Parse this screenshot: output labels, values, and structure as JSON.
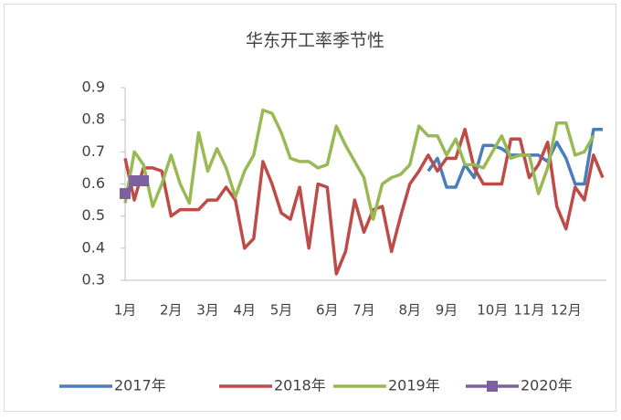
{
  "chart_data": {
    "type": "line",
    "title": "华东开工率季节性",
    "categories": [
      "1月",
      null,
      null,
      null,
      null,
      "2月",
      null,
      null,
      null,
      "3月",
      null,
      null,
      null,
      "4月",
      null,
      null,
      null,
      "5月",
      null,
      null,
      null,
      null,
      "6月",
      null,
      null,
      null,
      "7月",
      null,
      null,
      null,
      null,
      "8月",
      null,
      null,
      null,
      "9月",
      null,
      null,
      null,
      null,
      "10月",
      null,
      null,
      null,
      "11月",
      null,
      null,
      null,
      "12月",
      null,
      null,
      null,
      null
    ],
    "series": [
      {
        "name": "2017年",
        "color": "#4a7ebb",
        "values": [
          null,
          null,
          null,
          null,
          null,
          null,
          null,
          null,
          null,
          null,
          null,
          null,
          null,
          null,
          null,
          null,
          null,
          null,
          null,
          null,
          null,
          null,
          null,
          null,
          null,
          null,
          null,
          null,
          null,
          null,
          null,
          null,
          null,
          0.64,
          0.68,
          0.59,
          0.59,
          0.66,
          0.62,
          0.72,
          0.72,
          0.71,
          0.69,
          0.69,
          0.69,
          0.69,
          0.67,
          0.73,
          0.68,
          0.6,
          0.6,
          0.77,
          0.77
        ]
      },
      {
        "name": "2018年",
        "color": "#be4b48",
        "values": [
          0.68,
          0.55,
          0.65,
          0.65,
          0.64,
          0.5,
          0.52,
          0.52,
          0.52,
          0.55,
          0.55,
          0.59,
          0.55,
          0.4,
          0.43,
          0.67,
          0.6,
          0.51,
          0.49,
          0.59,
          0.4,
          0.6,
          0.59,
          0.32,
          0.39,
          0.55,
          0.45,
          0.52,
          0.53,
          0.39,
          0.5,
          0.6,
          0.64,
          0.69,
          0.64,
          0.68,
          0.68,
          0.77,
          0.65,
          0.6,
          0.6,
          0.6,
          0.74,
          0.74,
          0.62,
          0.66,
          0.73,
          0.53,
          0.46,
          0.59,
          0.55,
          0.69,
          0.62
        ]
      },
      {
        "name": "2019年",
        "color": "#98b954",
        "values": [
          0.54,
          0.7,
          0.66,
          0.53,
          0.6,
          0.69,
          0.6,
          0.54,
          0.76,
          0.64,
          0.71,
          0.65,
          0.56,
          0.64,
          0.69,
          0.83,
          0.82,
          0.76,
          0.68,
          0.67,
          0.67,
          0.65,
          0.66,
          0.78,
          0.72,
          0.67,
          0.62,
          0.49,
          0.6,
          0.62,
          0.63,
          0.66,
          0.78,
          0.75,
          0.75,
          0.69,
          0.74,
          0.66,
          0.66,
          0.65,
          0.7,
          0.75,
          0.68,
          0.69,
          0.69,
          0.57,
          0.65,
          0.79,
          0.79,
          0.69,
          0.7,
          0.75,
          null
        ]
      },
      {
        "name": "2020年",
        "color": "#7d60a0",
        "marker": "square",
        "values": [
          0.57,
          0.61,
          0.61,
          null,
          null,
          null,
          null,
          null,
          null,
          null,
          null,
          null,
          null,
          null,
          null,
          null,
          null,
          null,
          null,
          null,
          null,
          null,
          null,
          null,
          null,
          null,
          null,
          null,
          null,
          null,
          null,
          null,
          null,
          null,
          null,
          null,
          null,
          null,
          null,
          null,
          null,
          null,
          null,
          null,
          null,
          null,
          null,
          null,
          null,
          null,
          null,
          null,
          null
        ]
      }
    ],
    "ylim": [
      0.3,
      0.9
    ],
    "yticks": [
      0.3,
      0.4,
      0.5,
      0.6,
      0.7,
      0.8,
      0.9
    ],
    "legend": "bottom"
  }
}
